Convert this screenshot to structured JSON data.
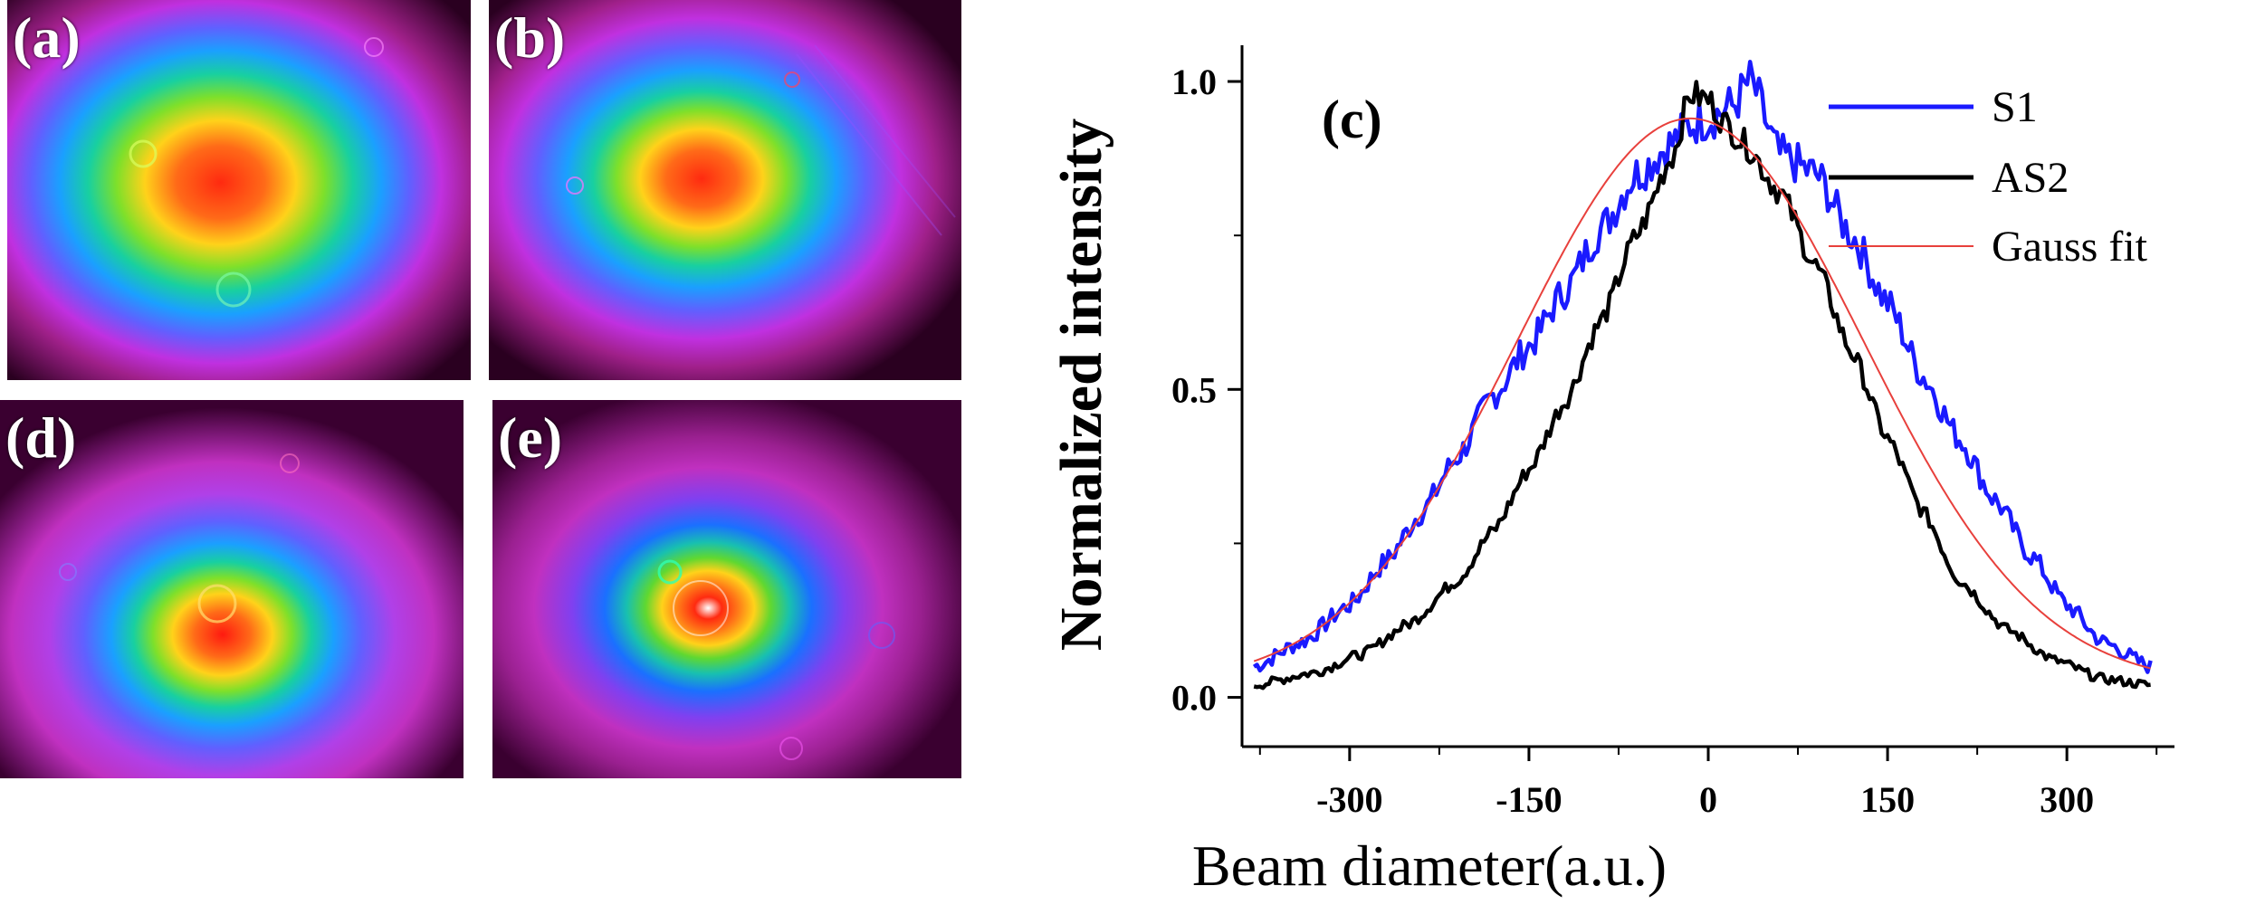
{
  "panels": [
    {
      "label": "(a)"
    },
    {
      "label": "(b)"
    },
    {
      "label": "(d)"
    },
    {
      "label": "(e)"
    }
  ],
  "colors": {
    "s1": "#1a1aff",
    "as2": "#000000",
    "fit": "#e8403c",
    "beam_background": "#2a0020"
  },
  "chart_data": {
    "type": "line",
    "panel_label": "(c)",
    "xlabel": "Beam diameter(a.u.)",
    "ylabel": "Normalized intensity",
    "xlim": [
      -390,
      390
    ],
    "ylim": [
      -0.08,
      1.05
    ],
    "xticks": [
      -300,
      -150,
      0,
      150,
      300
    ],
    "xtick_labels": [
      "-300",
      "-150",
      "0",
      "150",
      "300"
    ],
    "yticks": [
      0.0,
      0.5,
      1.0
    ],
    "ytick_labels": [
      "0.0",
      "0.5",
      "1.0"
    ],
    "legend_position": "top-right",
    "series": [
      {
        "name": "S1",
        "color": "#1a1aff",
        "kind": "measured",
        "x": [
          -380,
          -340,
          -300,
          -270,
          -240,
          -210,
          -180,
          -150,
          -120,
          -90,
          -60,
          -30,
          -15,
          0,
          20,
          35,
          60,
          90,
          120,
          150,
          180,
          210,
          240,
          270,
          300,
          330,
          370
        ],
        "y": [
          0.05,
          0.09,
          0.15,
          0.22,
          0.3,
          0.39,
          0.49,
          0.57,
          0.66,
          0.76,
          0.85,
          0.9,
          0.93,
          0.94,
          0.96,
          1.0,
          0.88,
          0.85,
          0.75,
          0.64,
          0.52,
          0.42,
          0.32,
          0.23,
          0.15,
          0.09,
          0.05
        ]
      },
      {
        "name": "AS2",
        "color": "#000000",
        "kind": "measured",
        "x": [
          -380,
          -330,
          -290,
          -250,
          -210,
          -180,
          -150,
          -120,
          -90,
          -60,
          -30,
          -15,
          0,
          15,
          30,
          60,
          90,
          120,
          150,
          180,
          210,
          250,
          290,
          330,
          370
        ],
        "y": [
          0.02,
          0.04,
          0.07,
          0.12,
          0.19,
          0.27,
          0.37,
          0.48,
          0.61,
          0.75,
          0.88,
          0.98,
          0.97,
          0.93,
          0.9,
          0.82,
          0.7,
          0.56,
          0.42,
          0.3,
          0.19,
          0.11,
          0.06,
          0.03,
          0.02
        ]
      },
      {
        "name": "Gauss fit",
        "color": "#e8403c",
        "kind": "fit",
        "amplitude": 0.92,
        "center": -15,
        "sigma": 145,
        "offset": 0.02,
        "x_range": [
          -380,
          370
        ]
      }
    ]
  }
}
